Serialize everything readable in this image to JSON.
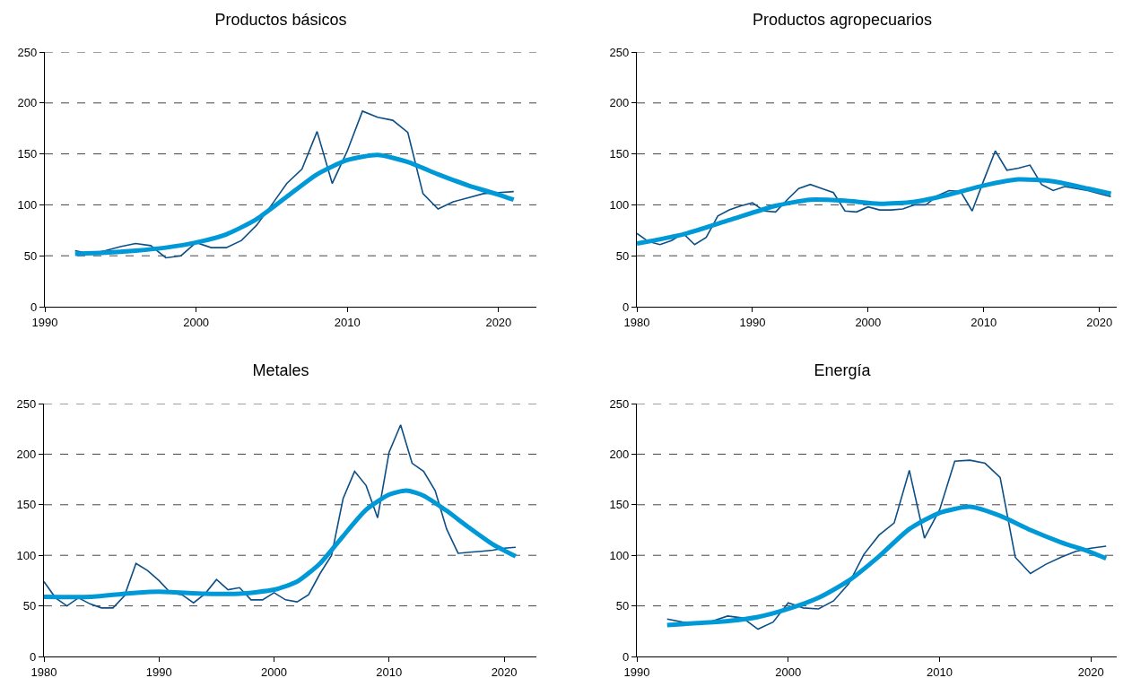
{
  "chart_data": [
    {
      "type": "line",
      "title": "Productos básicos",
      "xlim": [
        1990,
        2022.5
      ],
      "xticks": [
        1990,
        2000,
        2010,
        2020
      ],
      "ylim": [
        0,
        250
      ],
      "yticks": [
        0,
        50,
        100,
        150,
        200,
        250
      ],
      "grid": "y",
      "marker": "none",
      "series": [
        {
          "color": "#0b4f86",
          "x": [
            1992,
            1993,
            1994,
            1995,
            1996,
            1997,
            1998,
            1999,
            2000,
            2001,
            2002,
            2003,
            2004,
            2005,
            2006,
            2007,
            2008,
            2009,
            2010,
            2011,
            2012,
            2013,
            2014,
            2015,
            2016,
            2017,
            2018,
            2019,
            2020,
            2021
          ],
          "values": [
            55,
            52,
            55,
            59,
            62,
            60,
            48,
            50,
            63,
            58,
            58,
            65,
            80,
            100,
            121,
            135,
            172,
            121,
            153,
            192,
            186,
            183,
            171,
            111,
            96,
            103,
            107,
            111,
            112,
            113
          ]
        },
        {
          "color": "#0099d8",
          "x": [
            1992,
            1994,
            1996,
            1998,
            2000,
            2002,
            2004,
            2006,
            2008,
            2010,
            2012,
            2014,
            2016,
            2018,
            2020,
            2021
          ],
          "values": [
            52,
            53,
            55,
            58,
            63,
            71,
            86,
            108,
            130,
            144,
            149,
            142,
            130,
            119,
            110,
            105
          ]
        }
      ]
    },
    {
      "type": "line",
      "title": "Productos agropecuarios",
      "xlim": [
        1980,
        2021.5
      ],
      "xticks": [
        1980,
        1990,
        2000,
        2010,
        2020
      ],
      "ylim": [
        0,
        250
      ],
      "yticks": [
        0,
        50,
        100,
        150,
        200,
        250
      ],
      "grid": "y",
      "marker": "none",
      "series": [
        {
          "color": "#0b4f86",
          "x": [
            1980,
            1981,
            1982,
            1983,
            1984,
            1985,
            1986,
            1987,
            1988,
            1989,
            1990,
            1991,
            1992,
            1993,
            1994,
            1995,
            1996,
            1997,
            1998,
            1999,
            2000,
            2001,
            2002,
            2003,
            2004,
            2005,
            2006,
            2007,
            2008,
            2009,
            2010,
            2011,
            2012,
            2013,
            2014,
            2015,
            2016,
            2017,
            2018,
            2019,
            2020,
            2021
          ],
          "values": [
            72,
            64,
            61,
            65,
            72,
            61,
            68,
            89,
            95,
            99,
            102,
            94,
            93,
            105,
            116,
            120,
            116,
            112,
            94,
            93,
            98,
            95,
            95,
            96,
            100,
            100,
            109,
            114,
            113,
            94,
            124,
            153,
            134,
            136,
            139,
            120,
            114,
            118,
            116,
            114,
            111,
            108
          ]
        },
        {
          "color": "#0099d8",
          "x": [
            1980,
            1984,
            1988,
            1992,
            1995,
            1998,
            2001,
            2004,
            2007,
            2010,
            2013,
            2016,
            2019,
            2021
          ],
          "values": [
            62,
            71,
            85,
            99,
            105,
            104,
            101,
            103,
            110,
            119,
            125,
            123,
            116,
            111
          ]
        }
      ]
    },
    {
      "type": "line",
      "title": "Metales",
      "xlim": [
        1980,
        2022.8
      ],
      "xticks": [
        1980,
        1990,
        2000,
        2010,
        2020
      ],
      "ylim": [
        0,
        250
      ],
      "yticks": [
        0,
        50,
        100,
        150,
        200,
        250
      ],
      "grid": "y",
      "marker": "none",
      "series": [
        {
          "color": "#0b4f86",
          "x": [
            1980,
            1981,
            1982,
            1983,
            1984,
            1985,
            1986,
            1987,
            1988,
            1989,
            1990,
            1991,
            1992,
            1993,
            1994,
            1995,
            1996,
            1997,
            1998,
            1999,
            2000,
            2001,
            2002,
            2003,
            2004,
            2005,
            2006,
            2007,
            2008,
            2009,
            2010,
            2011,
            2012,
            2013,
            2014,
            2015,
            2016,
            2017,
            2018,
            2019,
            2020,
            2021
          ],
          "values": [
            74,
            58,
            50,
            58,
            52,
            48,
            48,
            60,
            92,
            85,
            75,
            63,
            61,
            53,
            62,
            76,
            66,
            68,
            56,
            56,
            63,
            56,
            54,
            61,
            82,
            100,
            156,
            183,
            169,
            137,
            202,
            229,
            191,
            183,
            164,
            126,
            102,
            103,
            104,
            105,
            107,
            108
          ]
        },
        {
          "color": "#0099d8",
          "x": [
            1980,
            1984,
            1988,
            1990,
            1994,
            1997,
            2000,
            2002,
            2004,
            2006,
            2008,
            2010,
            2011.5,
            2013,
            2015,
            2017,
            2019,
            2021
          ],
          "values": [
            59,
            59,
            63,
            64,
            62,
            62,
            66,
            74,
            92,
            119,
            145,
            160,
            164,
            159,
            144,
            127,
            111,
            99
          ]
        }
      ]
    },
    {
      "type": "line",
      "title": "Energía",
      "xlim": [
        1990,
        2021.7
      ],
      "xticks": [
        1990,
        2000,
        2010,
        2020
      ],
      "ylim": [
        0,
        250
      ],
      "yticks": [
        0,
        50,
        100,
        150,
        200,
        250
      ],
      "grid": "y",
      "marker": "none",
      "series": [
        {
          "color": "#0b4f86",
          "x": [
            1992,
            1993,
            1994,
            1995,
            1996,
            1997,
            1998,
            1999,
            2000,
            2001,
            2002,
            2003,
            2004,
            2005,
            2006,
            2007,
            2008,
            2009,
            2010,
            2011,
            2012,
            2013,
            2014,
            2015,
            2016,
            2017,
            2018,
            2019,
            2020,
            2021
          ],
          "values": [
            37,
            34,
            33,
            35,
            40,
            38,
            27,
            34,
            53,
            48,
            47,
            55,
            72,
            101,
            120,
            132,
            184,
            117,
            145,
            193,
            194,
            191,
            177,
            98,
            82,
            91,
            98,
            104,
            107,
            109
          ]
        },
        {
          "color": "#0099d8",
          "x": [
            1992,
            1994,
            1996,
            1998,
            2000,
            2002,
            2004,
            2006,
            2008,
            2010,
            2012,
            2014,
            2016,
            2018,
            2020,
            2021
          ],
          "values": [
            31,
            33,
            35,
            39,
            47,
            58,
            75,
            99,
            126,
            142,
            148,
            139,
            125,
            113,
            103,
            97
          ]
        }
      ]
    }
  ]
}
